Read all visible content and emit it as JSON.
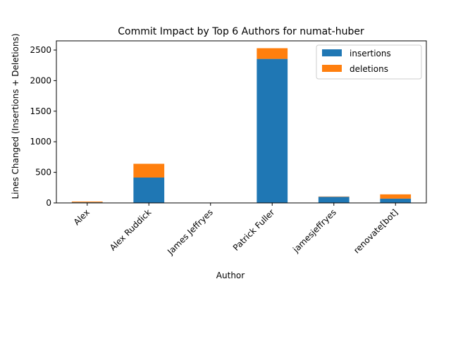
{
  "chart_data": {
    "type": "bar",
    "stacked": true,
    "title": "Commit Impact by Top 6 Authors for numat-huber",
    "xlabel": "Author",
    "ylabel": "Lines Changed (Insertions + Deletions)",
    "categories": [
      "Alex",
      "Alex Ruddick",
      "James Jeffryes",
      "Patrick Fuller",
      "jamesjeffryes",
      "renovate[bot]"
    ],
    "series": [
      {
        "name": "insertions",
        "color": "#1f77b4",
        "values": [
          10,
          415,
          2,
          2355,
          100,
          70
        ]
      },
      {
        "name": "deletions",
        "color": "#ff7f0e",
        "values": [
          12,
          225,
          1,
          175,
          5,
          70
        ]
      }
    ],
    "ylim": [
      0,
      2650
    ],
    "yticks": [
      0,
      500,
      1000,
      1500,
      2000,
      2500
    ],
    "legend_position": "top-right",
    "grid": false
  }
}
